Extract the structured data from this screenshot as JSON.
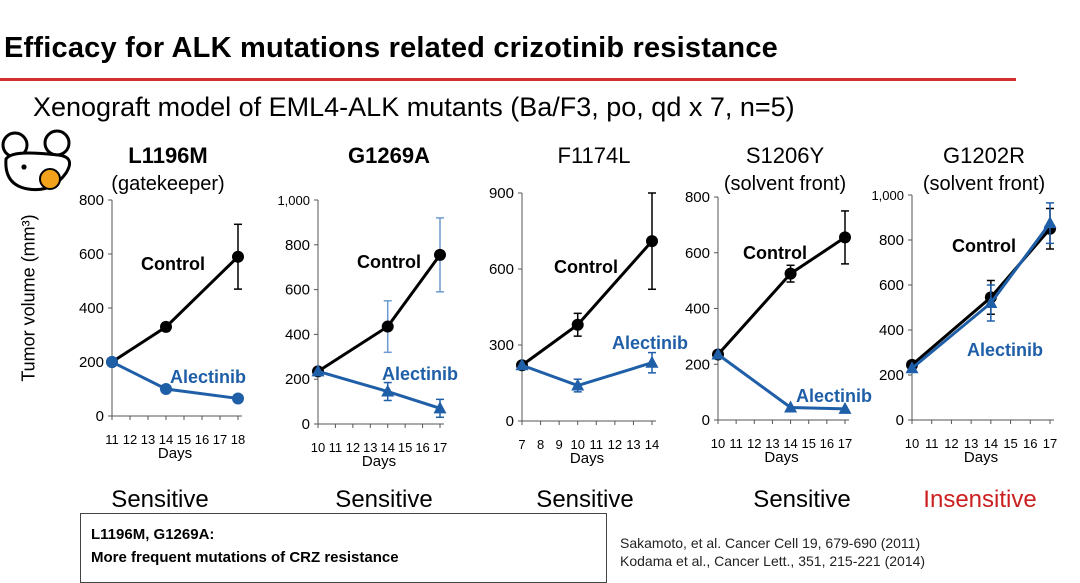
{
  "slide": {
    "title": "Efficacy for ALK mutations related crizotinib resistance",
    "subtitle": "Xenograft model of EML4-ALK mutants (Ba/F3, po, qd x 7, n=5)",
    "y_axis_label": "Tumor volume (mm³)",
    "colors": {
      "title_rule": "#d32f2f",
      "control": "#000000",
      "alectinib": "#1f5fa8",
      "insensitive": "#cc1f1f"
    },
    "summary_lines": [
      "L1196M, G1269A:",
      "More frequent mutations of CRZ resistance"
    ],
    "references": [
      "Sakamoto, et al. Cancer Cell 19, 679-690 (2011)",
      "Kodama et al., Cancer Lett., 351, 215-221 (2014)"
    ]
  },
  "chart_data": [
    {
      "type": "line",
      "title": "L1196M",
      "subtitle": "(gatekeeper)",
      "title_bold": true,
      "xlabel": "Days",
      "ylabel": "Tumor volume (mm³)",
      "x_ticks": [
        11,
        12,
        13,
        14,
        15,
        16,
        17,
        18
      ],
      "xlim": [
        11,
        18
      ],
      "ylim": [
        0,
        800
      ],
      "y_ticks": [
        "0",
        "200",
        "400",
        "600",
        "800"
      ],
      "series": [
        {
          "name": "Control",
          "marker": "circle",
          "x": [
            11,
            14,
            18
          ],
          "y": [
            200,
            330,
            590
          ],
          "err": [
            0,
            15,
            120
          ]
        },
        {
          "name": "Alectinib",
          "marker": "circle",
          "x": [
            11,
            14,
            18
          ],
          "y": [
            200,
            100,
            65
          ],
          "err": [
            0,
            0,
            0
          ]
        }
      ],
      "outcome": "Sensitive",
      "outcome_color": "#000000"
    },
    {
      "type": "line",
      "title": "G1269A",
      "subtitle": "",
      "title_bold": true,
      "xlabel": "Days",
      "x_ticks": [
        10,
        11,
        12,
        13,
        14,
        15,
        16,
        17
      ],
      "xlim": [
        10,
        17
      ],
      "ylim": [
        0,
        1000
      ],
      "y_ticks": [
        "0",
        "200",
        "400",
        "600",
        "800",
        "1,000"
      ],
      "series": [
        {
          "name": "Control",
          "marker": "circle",
          "x": [
            10,
            14,
            17
          ],
          "y": [
            235,
            435,
            755
          ],
          "err": [
            0,
            115,
            165
          ]
        },
        {
          "name": "Alectinib",
          "marker": "triangle",
          "x": [
            10,
            14,
            17
          ],
          "y": [
            235,
            145,
            70
          ],
          "err": [
            0,
            40,
            40
          ]
        }
      ],
      "outcome": "Sensitive",
      "outcome_color": "#000000"
    },
    {
      "type": "line",
      "title": "F1174L",
      "subtitle": "",
      "title_bold": false,
      "xlabel": "Days",
      "x_ticks": [
        7,
        8,
        9,
        10,
        11,
        12,
        13,
        14
      ],
      "xlim": [
        7,
        14
      ],
      "ylim": [
        0,
        900
      ],
      "y_ticks": [
        "0",
        "300",
        "600",
        "900"
      ],
      "series": [
        {
          "name": "Control",
          "marker": "circle",
          "x": [
            7,
            10,
            14
          ],
          "y": [
            220,
            380,
            710
          ],
          "err": [
            0,
            45,
            190
          ]
        },
        {
          "name": "Alectinib",
          "marker": "triangle",
          "x": [
            7,
            10,
            14
          ],
          "y": [
            220,
            140,
            230
          ],
          "err": [
            0,
            25,
            40
          ]
        }
      ],
      "outcome": "Sensitive",
      "outcome_color": "#000000"
    },
    {
      "type": "line",
      "title": "S1206Y",
      "subtitle": "(solvent front)",
      "title_bold": false,
      "xlabel": "Days",
      "x_ticks": [
        10,
        11,
        12,
        13,
        14,
        15,
        16,
        17
      ],
      "xlim": [
        10,
        17
      ],
      "ylim": [
        0,
        800
      ],
      "y_ticks": [
        "0",
        "200",
        "400",
        "600",
        "800"
      ],
      "series": [
        {
          "name": "Control",
          "marker": "circle",
          "x": [
            10,
            14,
            17
          ],
          "y": [
            235,
            525,
            655
          ],
          "err": [
            0,
            30,
            95
          ]
        },
        {
          "name": "Alectinib",
          "marker": "triangle",
          "x": [
            10,
            14,
            17
          ],
          "y": [
            235,
            45,
            40
          ],
          "err": [
            0,
            0,
            0
          ]
        }
      ],
      "outcome": "Sensitive",
      "outcome_color": "#000000"
    },
    {
      "type": "line",
      "title": "G1202R",
      "subtitle": "(solvent front)",
      "title_bold": false,
      "xlabel": "Days",
      "x_ticks": [
        10,
        11,
        12,
        13,
        14,
        15,
        16,
        17
      ],
      "xlim": [
        10,
        17
      ],
      "ylim": [
        0,
        1000
      ],
      "y_ticks": [
        "0",
        "200",
        "400",
        "600",
        "800",
        "1,000"
      ],
      "series": [
        {
          "name": "Control",
          "marker": "circle",
          "x": [
            10,
            14,
            17
          ],
          "y": [
            245,
            545,
            850
          ],
          "err": [
            0,
            75,
            90
          ]
        },
        {
          "name": "Alectinib",
          "marker": "triangle",
          "x": [
            10,
            14,
            17
          ],
          "y": [
            230,
            520,
            875
          ],
          "err": [
            0,
            80,
            90
          ]
        }
      ],
      "outcome": "Insensitive",
      "outcome_color": "#cc1f1f"
    }
  ]
}
